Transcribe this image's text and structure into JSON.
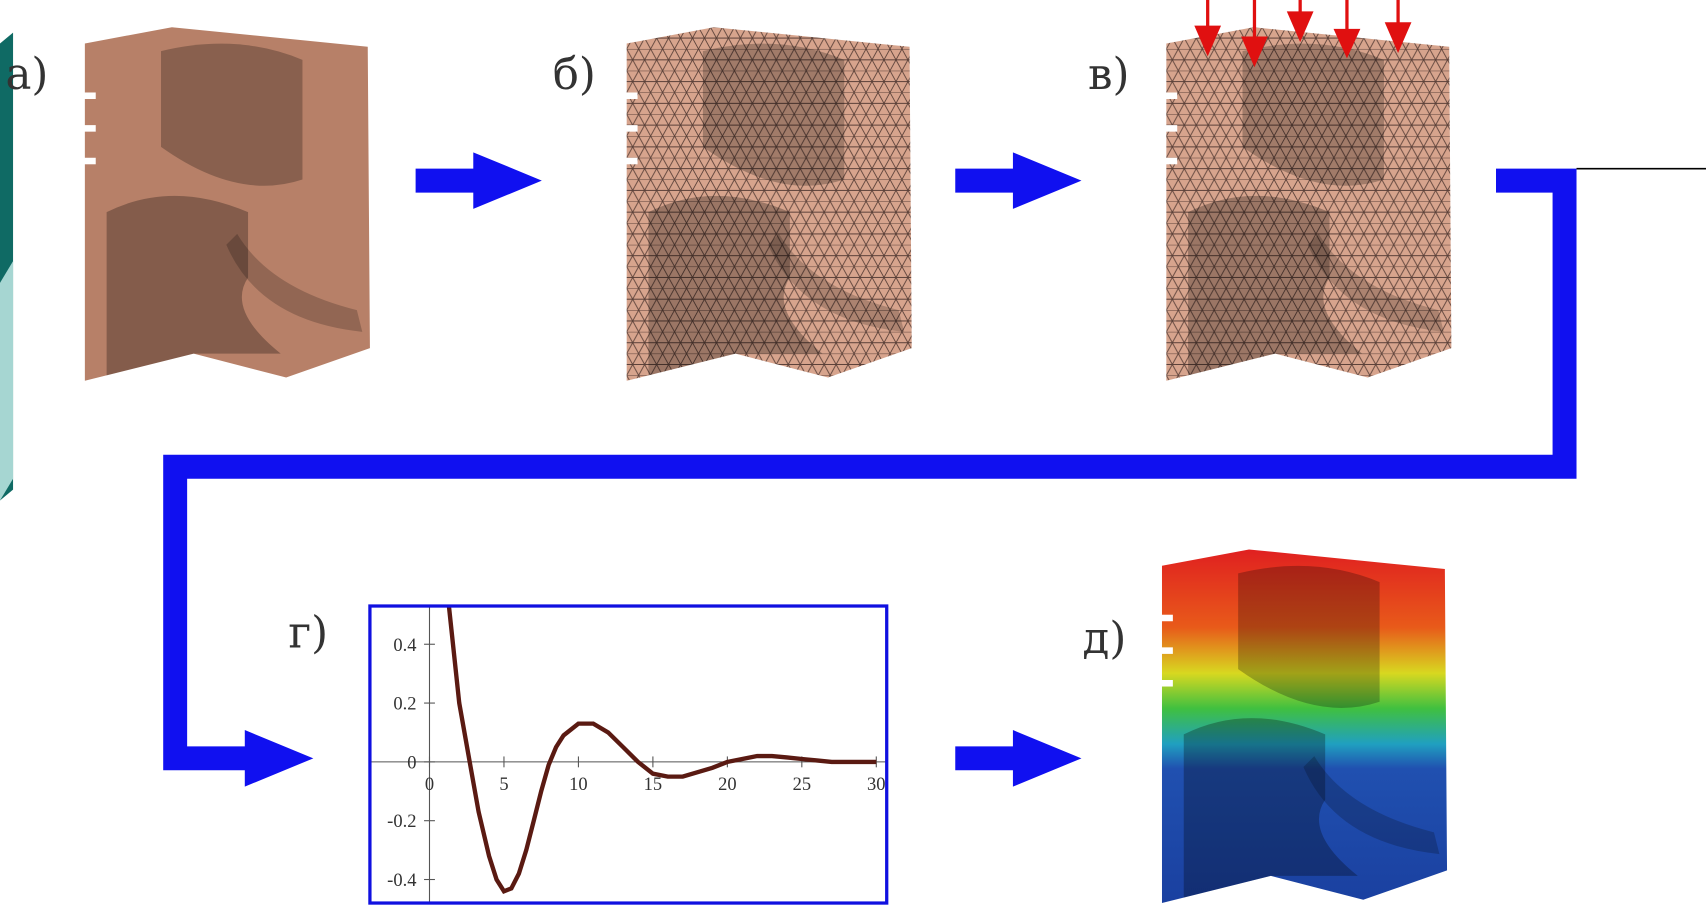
{
  "panels": {
    "a": "а)",
    "b": "б)",
    "c": "в)",
    "d": "г)",
    "e": "д)"
  },
  "chart": {
    "type": "line",
    "x": [
      1.3,
      2,
      2.7,
      3.3,
      4,
      4.5,
      5,
      5.5,
      6,
      6.5,
      7,
      7.5,
      8,
      8.5,
      9,
      10,
      11,
      12,
      13,
      14,
      15,
      16,
      17,
      18,
      19,
      20,
      21,
      22,
      23,
      24,
      25,
      26,
      27,
      28,
      29,
      30
    ],
    "values": [
      0.53,
      0.2,
      0,
      -0.17,
      -0.32,
      -0.4,
      -0.44,
      -0.43,
      -0.38,
      -0.3,
      -0.2,
      -0.1,
      -0.01,
      0.05,
      0.09,
      0.13,
      0.13,
      0.1,
      0.05,
      0,
      -0.04,
      -0.05,
      -0.05,
      -0.035,
      -0.02,
      0,
      0.01,
      0.02,
      0.02,
      0.015,
      0.01,
      0.005,
      0,
      0,
      0,
      0
    ],
    "color": "#5a1a12",
    "xlim": [
      -4,
      30.7
    ],
    "ylim": [
      -0.48,
      0.53
    ],
    "xticks": [
      0,
      5,
      10,
      15,
      20,
      25,
      30
    ],
    "yticks": [
      -0.4,
      -0.2,
      0,
      0.2,
      0.4
    ]
  }
}
